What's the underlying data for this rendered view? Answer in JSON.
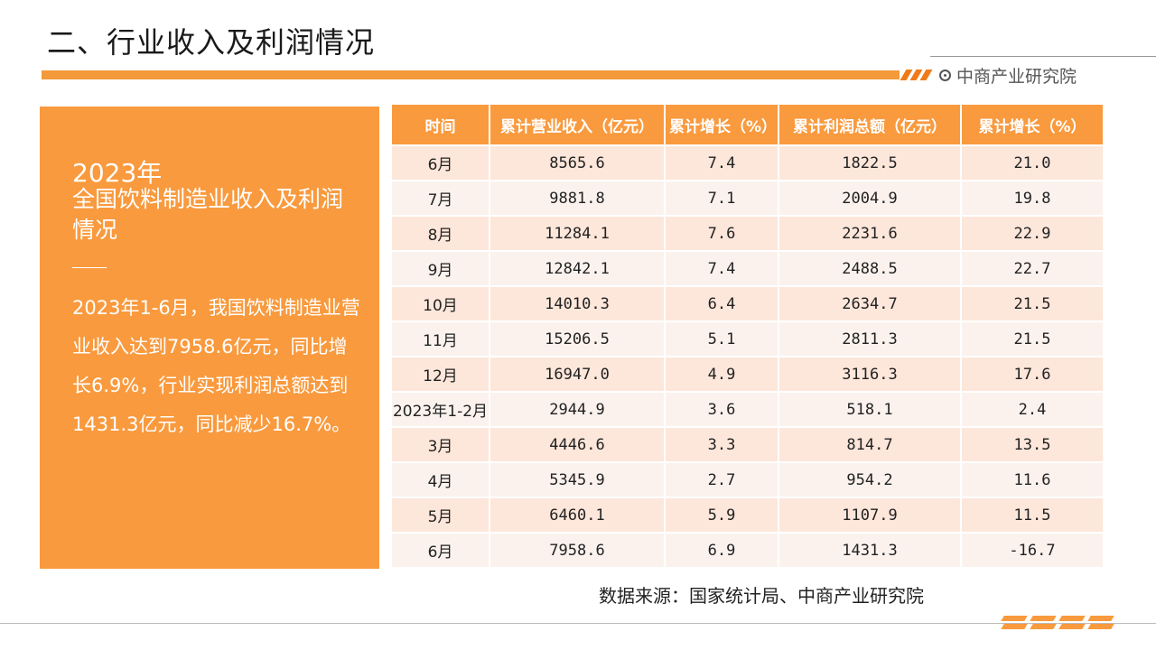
{
  "header": {
    "title": "二、行业收入及利润情况",
    "brand": "中商产业研究院"
  },
  "panel": {
    "year": "2023年",
    "heading": "全国饮料制造业收入及利润情况",
    "body": "2023年1-6月，我国饮料制造业营业收入达到7958.6亿元，同比增长6.9%，行业实现利润总额达到1431.3亿元，同比减少16.7%。"
  },
  "table": {
    "headers": [
      "时间",
      "累计营业收入（亿元）",
      "累计增长（%）",
      "累计利润总额（亿元）",
      "累计增长（%）"
    ],
    "rows": [
      [
        "6月",
        "8565.6",
        "7.4",
        "1822.5",
        "21.0"
      ],
      [
        "7月",
        "9881.8",
        "7.1",
        "2004.9",
        "19.8"
      ],
      [
        "8月",
        "11284.1",
        "7.6",
        "2231.6",
        "22.9"
      ],
      [
        "9月",
        "12842.1",
        "7.4",
        "2488.5",
        "22.7"
      ],
      [
        "10月",
        "14010.3",
        "6.4",
        "2634.7",
        "21.5"
      ],
      [
        "11月",
        "15206.5",
        "5.1",
        "2811.3",
        "21.5"
      ],
      [
        "12月",
        "16947.0",
        "4.9",
        "3116.3",
        "17.6"
      ],
      [
        "2023年1-2月",
        "2944.9",
        "3.6",
        "518.1",
        "2.4"
      ],
      [
        "3月",
        "4446.6",
        "3.3",
        "814.7",
        "13.5"
      ],
      [
        "4月",
        "5345.9",
        "2.7",
        "954.2",
        "11.6"
      ],
      [
        "5月",
        "6460.1",
        "5.9",
        "1107.9",
        "11.5"
      ],
      [
        "6月",
        "7958.6",
        "6.9",
        "1431.3",
        "-16.7"
      ]
    ]
  },
  "footer": {
    "source": "数据来源：国家统计局、中商产业研究院"
  },
  "colors": {
    "accent": "#f99a3e",
    "row_odd": "#fde6da",
    "row_even": "#fbf2ee"
  }
}
